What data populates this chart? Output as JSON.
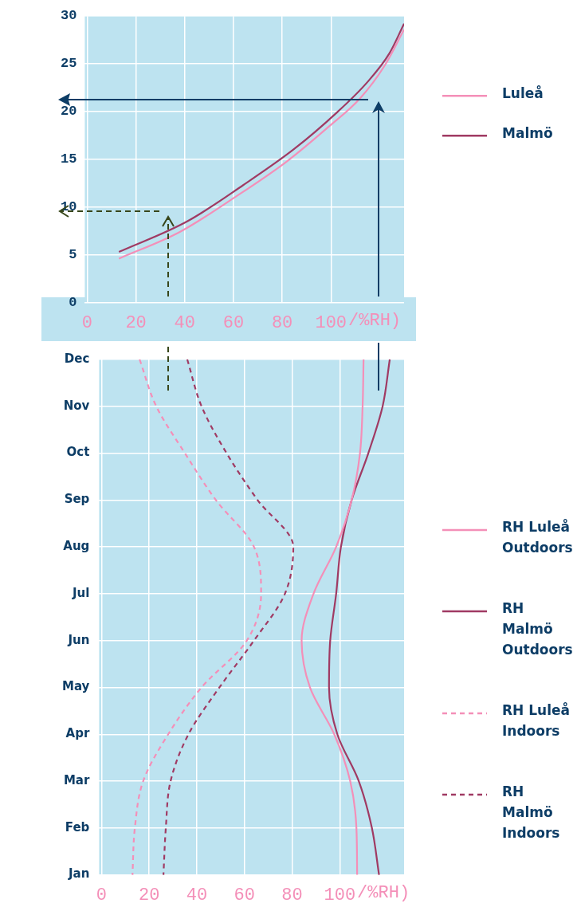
{
  "chart_data": [
    {
      "type": "line",
      "xlim": [
        -1,
        130
      ],
      "xticks": [
        0,
        20,
        40,
        60,
        80,
        100
      ],
      "xlabel": "/%RH)",
      "ylim": [
        0,
        30
      ],
      "yticks": [
        0,
        5,
        10,
        15,
        20,
        25,
        30
      ],
      "grid": true,
      "legend": "top right",
      "marker": "none",
      "series": [
        {
          "name": "Luleå",
          "color": "#f48fb8",
          "line_style": "solid",
          "x": [
            13,
            38,
            61,
            82,
            99,
            112,
            122,
            130
          ],
          "values": [
            4.6,
            7.4,
            11.1,
            14.8,
            18.4,
            21.4,
            24.8,
            28.6
          ]
        },
        {
          "name": "Malmö",
          "color": "#a03a63",
          "line_style": "solid",
          "x": [
            13,
            41,
            64,
            85,
            102,
            115,
            124,
            130
          ],
          "values": [
            5.3,
            8.5,
            12.3,
            16.1,
            19.8,
            23.1,
            26.1,
            29.2
          ]
        }
      ]
    },
    {
      "type": "line",
      "orientation": "horizontal",
      "categories": [
        "Dec",
        "Nov",
        "Oct",
        "Sep",
        "Aug",
        "Jul",
        "Jun",
        "May",
        "Apr",
        "Mar",
        "Feb",
        "Jan"
      ],
      "xlim": [
        -1,
        127
      ],
      "xticks": [
        0,
        20,
        40,
        60,
        80,
        100
      ],
      "xlabel": "/%RH)",
      "grid": true,
      "legend": "right",
      "marker": "none",
      "series": [
        {
          "name": "RH Luleå Outdoors",
          "color": "#f48fb8",
          "line_style": "solid",
          "values": [
            110,
            109.6,
            108.5,
            105,
            98.5,
            89,
            84,
            87.5,
            97.7,
            104.4,
            107,
            107.3
          ]
        },
        {
          "name": "RH Malmö Outdoors",
          "color": "#a03a63",
          "line_style": "solid",
          "values": [
            121,
            118,
            112,
            105,
            100.5,
            98.5,
            96,
            95.5,
            99,
            108,
            113.5,
            116.5
          ]
        },
        {
          "name": "RH Luleå Indoors",
          "color": "#f48fb8",
          "line_style": "dashed",
          "values": [
            16,
            23,
            35,
            48,
            64,
            67,
            61,
            42,
            28,
            17.5,
            14,
            13
          ]
        },
        {
          "name": "RH Malmö Indoors",
          "color": "#a03a63",
          "line_style": "dashed",
          "values": [
            36,
            42,
            52.5,
            65.5,
            80.5,
            77,
            64,
            49.5,
            36.5,
            29,
            27,
            26
          ]
        }
      ]
    }
  ]
}
